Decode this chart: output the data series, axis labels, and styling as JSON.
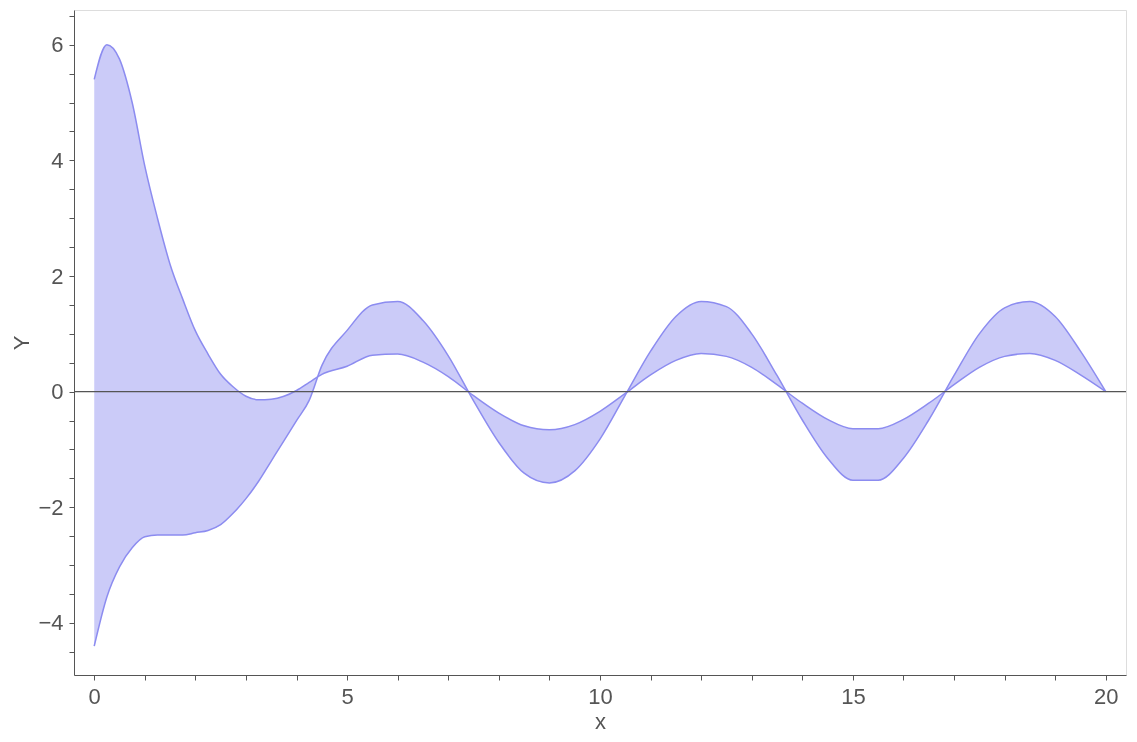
{
  "chart_data": {
    "type": "line",
    "xlabel": "x",
    "ylabel": "Y",
    "x": [
      0,
      0.25,
      0.5,
      0.75,
      1,
      1.25,
      1.5,
      1.75,
      2,
      2.25,
      2.5,
      2.75,
      3,
      3.25,
      3.5,
      3.75,
      4,
      4.25,
      4.5,
      5,
      5.5,
      6,
      6.5,
      7,
      7.5,
      8,
      8.5,
      9,
      9.5,
      10,
      10.5,
      11,
      11.5,
      12,
      12.5,
      13,
      13.5,
      14,
      14.5,
      15,
      15.5,
      16,
      16.5,
      17,
      17.5,
      18,
      18.5,
      19,
      19.5,
      20
    ],
    "series": [
      {
        "color": "#8c8cf0",
        "values": [
          5.4,
          6.0,
          5.75,
          5.0,
          3.9,
          3.0,
          2.2,
          1.6,
          1.05,
          0.65,
          0.3,
          0.08,
          -0.08,
          -0.14,
          -0.13,
          -0.08,
          0.02,
          0.16,
          0.3,
          0.44,
          0.63,
          0.65,
          0.51,
          0.26,
          -0.07,
          -0.37,
          -0.59,
          -0.66,
          -0.57,
          -0.34,
          -0.03,
          0.29,
          0.54,
          0.66,
          0.61,
          0.42,
          0.12,
          -0.2,
          -0.48,
          -0.64,
          -0.64,
          -0.48,
          -0.2,
          0.12,
          0.42,
          0.61,
          0.66,
          0.54,
          0.29,
          0
        ],
        "lower": [
          -4.4,
          -3.55,
          -3.03,
          -2.7,
          -2.51,
          -2.48,
          -2.48,
          -2.48,
          -2.44,
          -2.4,
          -2.3,
          -2.1,
          -1.85,
          -1.55,
          -1.2,
          -0.85,
          -0.5,
          -0.15,
          0.45,
          1.06,
          1.5,
          1.56,
          1.23,
          0.62,
          -0.16,
          -0.88,
          -1.41,
          -1.58,
          -1.37,
          -0.82,
          -0.06,
          0.7,
          1.3,
          1.56,
          1.47,
          1.0,
          0.28,
          -0.49,
          -1.15,
          -1.53,
          -1.53,
          -1.15,
          -0.49,
          0.28,
          1.0,
          1.45,
          1.56,
          1.3,
          0.7,
          0
        ],
        "upper": [
          5.4,
          6.0,
          5.75,
          5.0,
          3.9,
          3.0,
          2.2,
          1.6,
          1.05,
          0.65,
          0.3,
          0.08,
          -0.08,
          -0.14,
          -0.13,
          -0.08,
          0.02,
          0.16,
          0.3,
          0.44,
          0.63,
          0.65,
          0.51,
          0.26,
          -0.07,
          -0.37,
          -0.59,
          -0.66,
          -0.57,
          -0.34,
          -0.03,
          0.29,
          0.54,
          0.66,
          0.61,
          0.42,
          0.12,
          -0.2,
          -0.48,
          -0.64,
          -0.64,
          -0.48,
          -0.2,
          0.12,
          0.42,
          0.61,
          0.66,
          0.54,
          0.29,
          0
        ]
      },
      {
        "color": "#8c8cf0",
        "values": [
          -4.4,
          -3.55,
          -3.03,
          -2.7,
          -2.51,
          -2.48,
          -2.48,
          -2.48,
          -2.44,
          -2.4,
          -2.3,
          -2.1,
          -1.85,
          -1.55,
          -1.2,
          -0.85,
          -0.5,
          -0.15,
          0.45,
          1.06,
          1.5,
          1.56,
          1.23,
          0.62,
          -0.16,
          -0.88,
          -1.41,
          -1.58,
          -1.37,
          -0.82,
          -0.06,
          0.7,
          1.3,
          1.56,
          1.47,
          1.0,
          0.28,
          -0.49,
          -1.15,
          -1.53,
          -1.53,
          -1.15,
          -0.49,
          0.28,
          1.0,
          1.45,
          1.56,
          1.3,
          0.7,
          0
        ]
      }
    ],
    "xlim": [
      -0.4,
      20.4
    ],
    "xticks": [
      0,
      {
        "value": 1,
        "label": null
      },
      {
        "value": 2,
        "label": null
      },
      {
        "value": 3,
        "label": null
      },
      {
        "value": 4,
        "label": null
      },
      5,
      {
        "value": 6,
        "label": null
      },
      {
        "value": 7,
        "label": null
      },
      {
        "value": 8,
        "label": null
      },
      {
        "value": 9,
        "label": null
      },
      10,
      {
        "value": 11,
        "label": null
      },
      {
        "value": 12,
        "label": null
      },
      {
        "value": 13,
        "label": null
      },
      {
        "value": 14,
        "label": null
      },
      15,
      {
        "value": 16,
        "label": null
      },
      {
        "value": 17,
        "label": null
      },
      {
        "value": 18,
        "label": null
      },
      {
        "value": 19,
        "label": null
      },
      20
    ],
    "ylim": [
      -4.9,
      6.6
    ],
    "yticks": [
      {
        "value": -4.5,
        "label": null
      },
      {
        "value": -4,
        "label": "−4"
      },
      {
        "value": -3.5,
        "label": null
      },
      {
        "value": -3,
        "label": null
      },
      {
        "value": -2.5,
        "label": null
      },
      {
        "value": -2,
        "label": "−2"
      },
      {
        "value": -1.5,
        "label": null
      },
      {
        "value": -1,
        "label": null
      },
      {
        "value": -0.5,
        "label": null
      },
      0,
      {
        "value": 0.5,
        "label": null
      },
      {
        "value": 1,
        "label": null
      },
      {
        "value": 1.5,
        "label": null
      },
      2,
      {
        "value": 2.5,
        "label": null
      },
      {
        "value": 3,
        "label": null
      },
      {
        "value": 3.5,
        "label": null
      },
      4,
      {
        "value": 4.5,
        "label": null
      },
      {
        "value": 5,
        "label": null
      },
      {
        "value": 5.5,
        "label": null
      },
      6,
      {
        "value": 6.5,
        "label": null
      }
    ],
    "ref_lines": [
      {
        "axis": "y",
        "value": 0,
        "color": "#555555"
      }
    ],
    "grid": false
  }
}
